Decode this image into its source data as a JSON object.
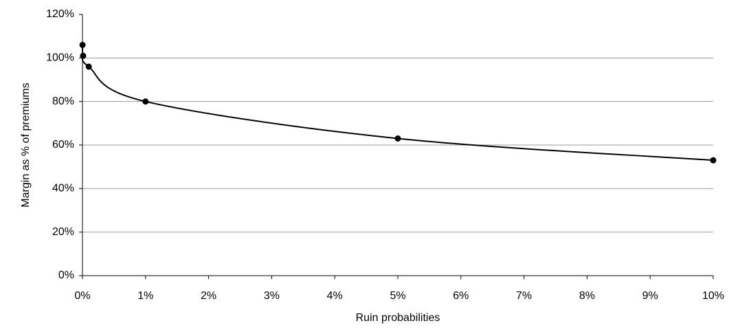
{
  "chart_data": {
    "type": "line",
    "x_label": "Ruin probabilities",
    "y_label": "Margin as % of premiums",
    "x": [
      0.001,
      0.01,
      0.1,
      1,
      5,
      10
    ],
    "series": [
      {
        "color": "#000000",
        "values": [
          106,
          101,
          96,
          80,
          63,
          53
        ]
      }
    ],
    "xlim": [
      0,
      10
    ],
    "xticks": [
      {
        "value": 0,
        "label": "0%"
      },
      {
        "value": 1,
        "label": "1%"
      },
      {
        "value": 2,
        "label": "2%"
      },
      {
        "value": 3,
        "label": "3%"
      },
      {
        "value": 4,
        "label": "4%"
      },
      {
        "value": 5,
        "label": "5%"
      },
      {
        "value": 6,
        "label": "6%"
      },
      {
        "value": 7,
        "label": "7%"
      },
      {
        "value": 8,
        "label": "8%"
      },
      {
        "value": 9,
        "label": "9%"
      },
      {
        "value": 10,
        "label": "10%"
      }
    ],
    "ylim": [
      0,
      120
    ],
    "yticks": [
      {
        "value": 0,
        "label": "0%"
      },
      {
        "value": 20,
        "label": "20%"
      },
      {
        "value": 40,
        "label": "40%"
      },
      {
        "value": 60,
        "label": "60%"
      },
      {
        "value": 80,
        "label": "80%"
      },
      {
        "value": 100,
        "label": "100%"
      },
      {
        "value": 120,
        "label": "120%"
      }
    ],
    "grid": true
  }
}
